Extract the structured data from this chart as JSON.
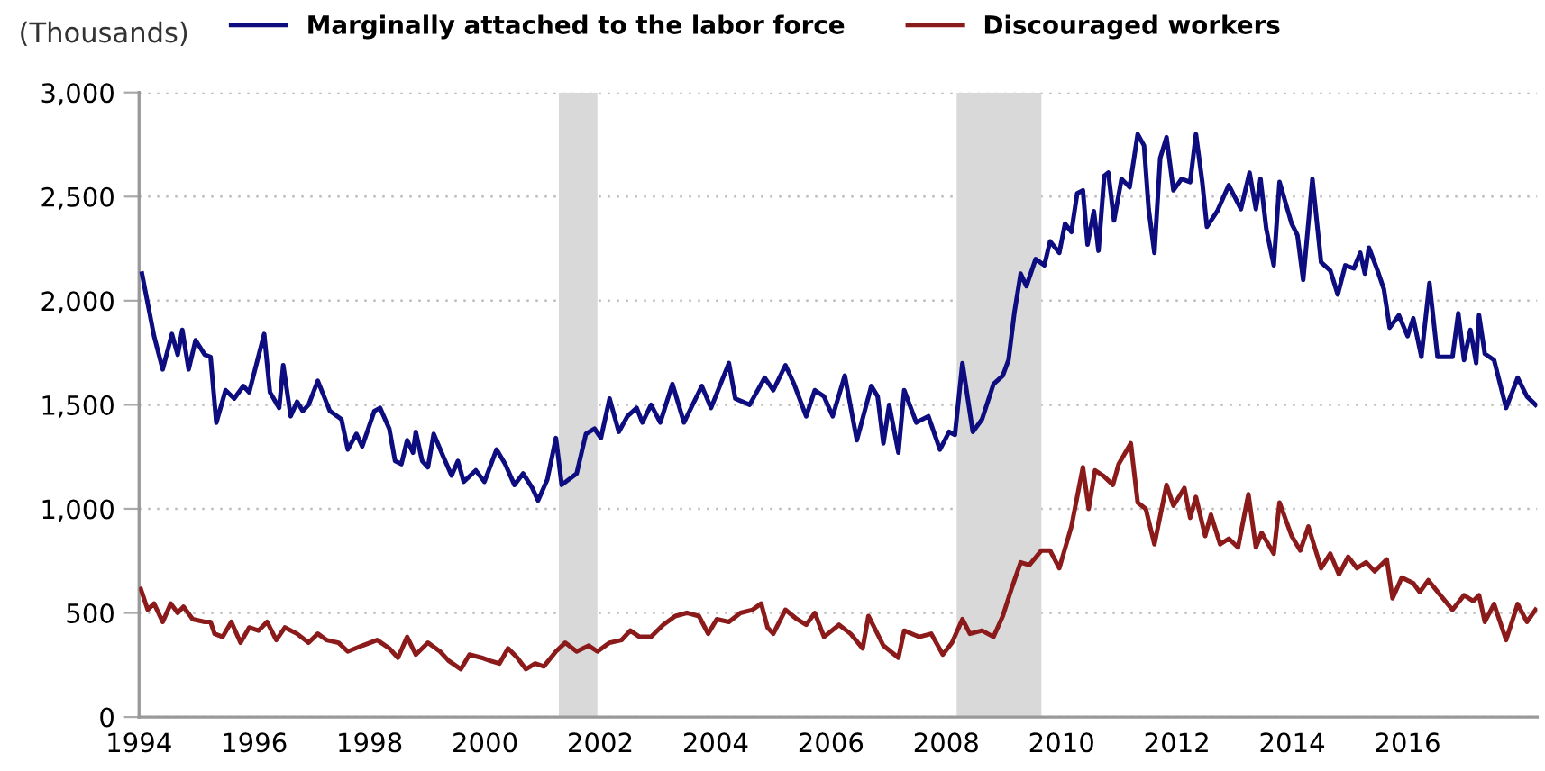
{
  "chart_data": {
    "type": "line",
    "ylabel": "(Thousands)",
    "xlim": [
      1994,
      2018.25
    ],
    "xticks": [
      1994,
      1996,
      1998,
      2000,
      2002,
      2004,
      2006,
      2008,
      2010,
      2012,
      2014,
      2016
    ],
    "ylim": [
      0,
      3000
    ],
    "yticks": [
      {
        "value": 0,
        "label": "0"
      },
      {
        "value": 500,
        "label": "500"
      },
      {
        "value": 1000,
        "label": "1,000"
      },
      {
        "value": 1500,
        "label": "1,500"
      },
      {
        "value": 2000,
        "label": "2,000"
      },
      {
        "value": 2500,
        "label": "2,500"
      },
      {
        "value": 3000,
        "label": "3,000"
      }
    ],
    "grid": "y",
    "legend": "top",
    "line_style": "solid",
    "marker": "none",
    "bands": [
      {
        "axis": "x",
        "from": 2001.28,
        "to": 2001.95,
        "color": "#d9d9d9"
      },
      {
        "axis": "x",
        "from": 2008.18,
        "to": 2009.65,
        "color": "#d9d9d9"
      }
    ],
    "series": [
      {
        "name": "Marginally attached to the labor force",
        "color": "#0d0d80",
        "x": [
          1994.05,
          1994.26,
          1994.41,
          1994.57,
          1994.67,
          1994.75,
          1994.86,
          1994.98,
          1995.14,
          1995.24,
          1995.34,
          1995.5,
          1995.65,
          1995.81,
          1995.91,
          1996.17,
          1996.27,
          1996.43,
          1996.5,
          1996.63,
          1996.74,
          1996.84,
          1996.94,
          1997.1,
          1997.31,
          1997.51,
          1997.62,
          1997.77,
          1997.87,
          1998.08,
          1998.18,
          1998.34,
          1998.44,
          1998.55,
          1998.65,
          1998.75,
          1998.8,
          1998.91,
          1999.01,
          1999.11,
          1999.27,
          1999.42,
          1999.53,
          1999.63,
          1999.84,
          1999.99,
          2000.2,
          2000.35,
          2000.51,
          2000.66,
          2000.82,
          2000.92,
          2001.08,
          2001.23,
          2001.33,
          2001.59,
          2001.75,
          2001.9,
          2002.01,
          2002.16,
          2002.32,
          2002.47,
          2002.63,
          2002.73,
          2002.88,
          2003.04,
          2003.25,
          2003.45,
          2003.76,
          2003.92,
          2004.23,
          2004.34,
          2004.59,
          2004.85,
          2005.0,
          2005.21,
          2005.36,
          2005.57,
          2005.72,
          2005.88,
          2006.03,
          2006.24,
          2006.45,
          2006.7,
          2006.81,
          2006.91,
          2007.01,
          2007.17,
          2007.27,
          2007.48,
          2007.69,
          2007.89,
          2008.05,
          2008.15,
          2008.28,
          2008.46,
          2008.62,
          2008.82,
          2008.98,
          2009.08,
          2009.18,
          2009.29,
          2009.39,
          2009.55,
          2009.7,
          2009.8,
          2009.96,
          2010.06,
          2010.17,
          2010.27,
          2010.37,
          2010.45,
          2010.56,
          2010.64,
          2010.74,
          2010.81,
          2010.91,
          2011.04,
          2011.18,
          2011.32,
          2011.43,
          2011.51,
          2011.61,
          2011.71,
          2011.82,
          2011.94,
          2012.08,
          2012.23,
          2012.33,
          2012.44,
          2012.52,
          2012.7,
          2012.9,
          2013.11,
          2013.26,
          2013.37,
          2013.45,
          2013.55,
          2013.68,
          2013.78,
          2013.99,
          2014.09,
          2014.19,
          2014.35,
          2014.5,
          2014.66,
          2014.79,
          2014.92,
          2015.07,
          2015.18,
          2015.26,
          2015.33,
          2015.48,
          2015.59,
          2015.69,
          2015.85,
          2016.0,
          2016.1,
          2016.24,
          2016.38,
          2016.52,
          2016.78,
          2016.88,
          2016.98,
          2017.09,
          2017.19,
          2017.24,
          2017.34,
          2017.5,
          2017.71,
          2017.91,
          2018.07,
          2018.22
        ],
        "values": [
          2130,
          1830,
          1670,
          1840,
          1740,
          1860,
          1670,
          1810,
          1740,
          1730,
          1414,
          1570,
          1530,
          1590,
          1560,
          1840,
          1560,
          1485,
          1690,
          1445,
          1515,
          1470,
          1500,
          1615,
          1470,
          1430,
          1285,
          1360,
          1300,
          1470,
          1485,
          1385,
          1230,
          1215,
          1330,
          1270,
          1370,
          1230,
          1200,
          1360,
          1255,
          1160,
          1230,
          1130,
          1185,
          1130,
          1285,
          1215,
          1115,
          1170,
          1100,
          1040,
          1140,
          1340,
          1115,
          1170,
          1360,
          1385,
          1340,
          1530,
          1370,
          1445,
          1485,
          1415,
          1500,
          1415,
          1600,
          1415,
          1590,
          1485,
          1700,
          1530,
          1500,
          1630,
          1570,
          1690,
          1600,
          1445,
          1570,
          1540,
          1445,
          1640,
          1330,
          1590,
          1540,
          1315,
          1500,
          1270,
          1570,
          1415,
          1445,
          1285,
          1370,
          1355,
          1700,
          1370,
          1430,
          1600,
          1640,
          1715,
          1940,
          2130,
          2070,
          2200,
          2170,
          2285,
          2230,
          2370,
          2330,
          2515,
          2530,
          2270,
          2430,
          2240,
          2600,
          2615,
          2385,
          2585,
          2545,
          2800,
          2745,
          2440,
          2230,
          2685,
          2785,
          2530,
          2585,
          2570,
          2800,
          2570,
          2355,
          2430,
          2555,
          2440,
          2615,
          2440,
          2585,
          2345,
          2170,
          2570,
          2370,
          2315,
          2100,
          2585,
          2185,
          2145,
          2030,
          2170,
          2155,
          2230,
          2130,
          2255,
          2145,
          2055,
          1870,
          1930,
          1830,
          1915,
          1730,
          2085,
          1730,
          1730,
          1940,
          1715,
          1860,
          1700,
          1930,
          1745,
          1715,
          1485,
          1630,
          1540,
          1500
        ]
      },
      {
        "name": "Discouraged workers",
        "color": "#8b1a1a",
        "x": [
          1994.03,
          1994.15,
          1994.26,
          1994.41,
          1994.55,
          1994.67,
          1994.77,
          1994.93,
          1995.14,
          1995.24,
          1995.31,
          1995.45,
          1995.6,
          1995.76,
          1995.91,
          1996.07,
          1996.22,
          1996.38,
          1996.53,
          1996.74,
          1996.94,
          1997.1,
          1997.25,
          1997.46,
          1997.62,
          1997.87,
          1998.13,
          1998.34,
          1998.49,
          1998.65,
          1998.8,
          1999.01,
          1999.22,
          1999.37,
          1999.58,
          1999.73,
          1999.94,
          2000.09,
          2000.25,
          2000.4,
          2000.56,
          2000.71,
          2000.87,
          2001.02,
          2001.23,
          2001.39,
          2001.59,
          2001.8,
          2001.95,
          2002.16,
          2002.37,
          2002.52,
          2002.68,
          2002.88,
          2003.09,
          2003.3,
          2003.5,
          2003.71,
          2003.87,
          2004.02,
          2004.23,
          2004.43,
          2004.64,
          2004.79,
          2004.9,
          2005.0,
          2005.21,
          2005.41,
          2005.57,
          2005.72,
          2005.88,
          2006.14,
          2006.34,
          2006.55,
          2006.65,
          2006.91,
          2007.17,
          2007.27,
          2007.53,
          2007.74,
          2007.94,
          2008.1,
          2008.28,
          2008.41,
          2008.62,
          2008.82,
          2008.98,
          2009.13,
          2009.29,
          2009.44,
          2009.65,
          2009.8,
          2009.96,
          2010.17,
          2010.37,
          2010.47,
          2010.58,
          2010.73,
          2010.89,
          2010.99,
          2011.2,
          2011.32,
          2011.46,
          2011.61,
          2011.82,
          2011.94,
          2012.13,
          2012.23,
          2012.33,
          2012.49,
          2012.59,
          2012.75,
          2012.9,
          2013.06,
          2013.24,
          2013.37,
          2013.47,
          2013.68,
          2013.78,
          2013.99,
          2014.14,
          2014.28,
          2014.5,
          2014.66,
          2014.81,
          2014.97,
          2015.12,
          2015.28,
          2015.43,
          2015.64,
          2015.74,
          2015.9,
          2016.1,
          2016.21,
          2016.36,
          2016.57,
          2016.78,
          2016.98,
          2017.14,
          2017.24,
          2017.34,
          2017.5,
          2017.71,
          2017.91,
          2018.07,
          2018.22
        ],
        "values": [
          615,
          515,
          545,
          457,
          545,
          500,
          530,
          470,
          457,
          457,
          400,
          385,
          457,
          357,
          430,
          415,
          457,
          370,
          430,
          400,
          357,
          400,
          370,
          357,
          315,
          343,
          370,
          330,
          285,
          385,
          300,
          357,
          315,
          270,
          230,
          300,
          285,
          270,
          257,
          330,
          285,
          230,
          257,
          243,
          315,
          357,
          315,
          343,
          315,
          357,
          370,
          415,
          385,
          385,
          443,
          485,
          500,
          485,
          400,
          470,
          457,
          500,
          515,
          545,
          430,
          400,
          515,
          470,
          443,
          500,
          385,
          443,
          400,
          330,
          485,
          343,
          285,
          415,
          385,
          400,
          300,
          357,
          470,
          400,
          415,
          385,
          485,
          615,
          743,
          730,
          800,
          800,
          715,
          915,
          1200,
          1000,
          1185,
          1157,
          1115,
          1215,
          1315,
          1030,
          1000,
          830,
          1115,
          1015,
          1100,
          957,
          1057,
          870,
          972,
          830,
          857,
          815,
          1070,
          815,
          885,
          785,
          1030,
          870,
          800,
          915,
          715,
          785,
          685,
          770,
          715,
          743,
          700,
          757,
          570,
          670,
          643,
          600,
          657,
          585,
          515,
          585,
          557,
          585,
          457,
          543,
          370,
          543,
          457,
          515
        ]
      }
    ]
  }
}
